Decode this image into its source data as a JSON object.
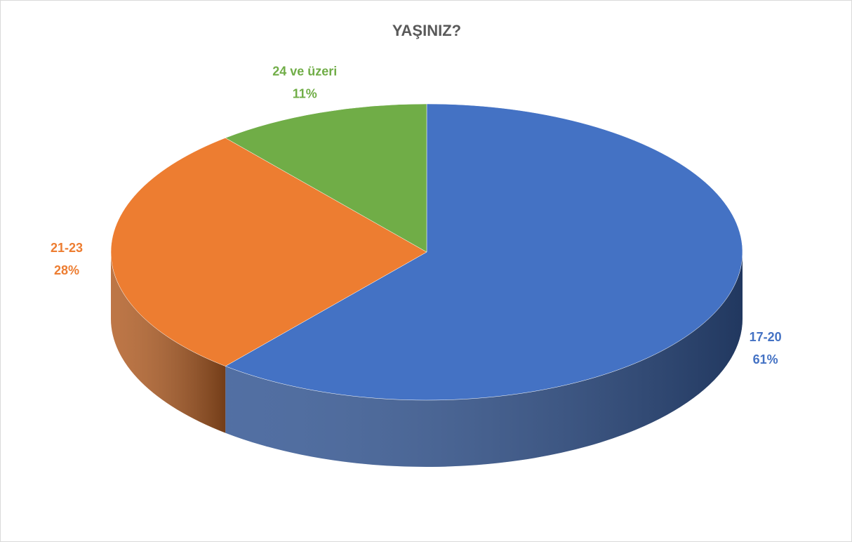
{
  "chart_data": {
    "type": "pie",
    "title": "YAŞINIZ?",
    "categories": [
      "17-20",
      "21-23",
      "24 ve üzeri"
    ],
    "values": [
      61,
      28,
      11
    ],
    "value_labels": [
      "61%",
      "28%",
      "11%"
    ],
    "colors": [
      "#4472c4",
      "#ed7d31",
      "#70ad47"
    ]
  }
}
